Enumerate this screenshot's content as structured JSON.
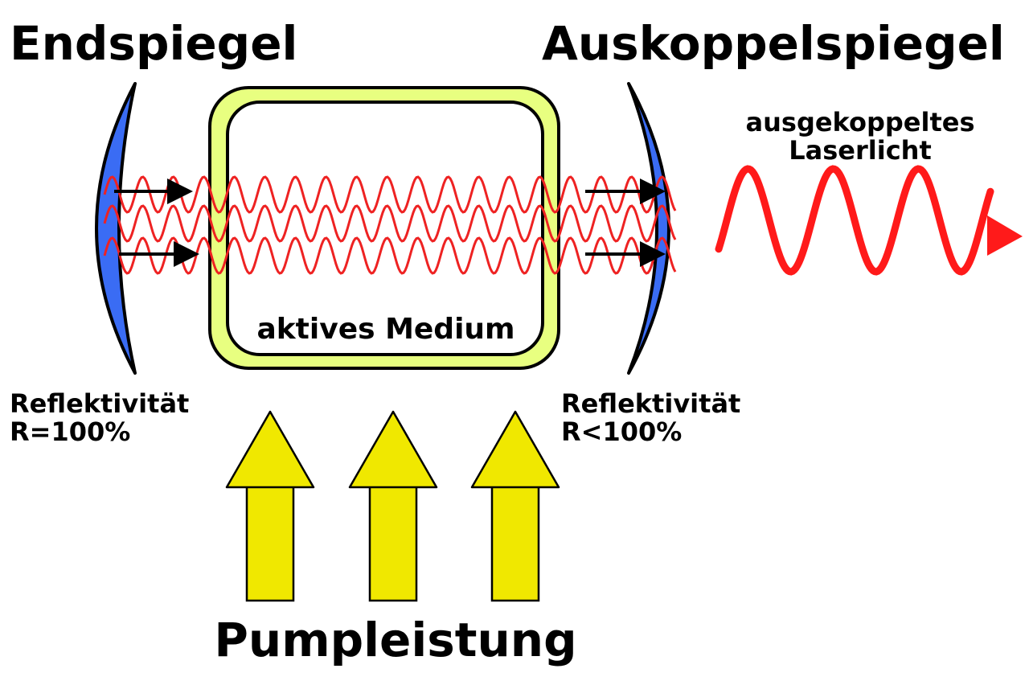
{
  "labels": {
    "end_mirror": "Endspiegel",
    "output_mirror": "Auskoppelspiegel",
    "output_light_line1": "ausgekoppeltes",
    "output_light_line2": "Laserlicht",
    "active_medium": "aktives Medium",
    "end_reflectivity_line1": "Reflektivität",
    "end_reflectivity_line2": "R=100%",
    "output_reflectivity_line1": "Reflektivität",
    "output_reflectivity_line2": "R<100%",
    "pump_power": "Pumpleistung"
  },
  "colors": {
    "mirror": "#3a6cf4",
    "medium_outer": "#e8ff80",
    "wave": "#ee2222",
    "output_wave": "#ff1a1a",
    "pump_arrow": "#f0e800",
    "stroke": "#000000"
  },
  "pump_arrow_count": 3
}
